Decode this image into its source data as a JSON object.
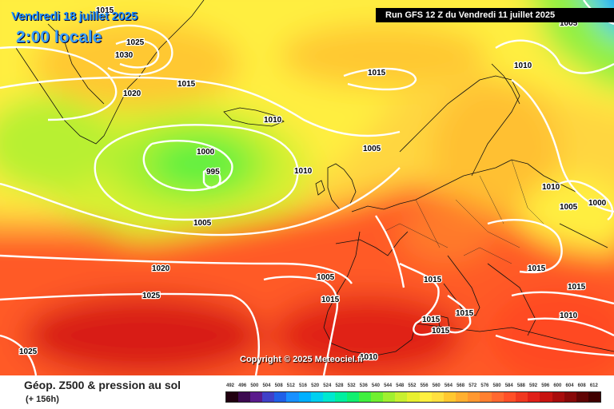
{
  "header": {
    "date": "Vendredi 18 juillet 2025",
    "local_time": "2:00 locale",
    "run": "Run GFS 12 Z du Vendredi 11 juillet 2025"
  },
  "copyright": "Copyright © 2025 Meteociel.fr",
  "footer": {
    "title": "Géop. Z500 & pression au sol",
    "lead": "(+ 156h)"
  },
  "isobar_labels": [
    "1015",
    "1025",
    "1030",
    "1020",
    "1015",
    "1015",
    "1010",
    "1000",
    "995",
    "1005",
    "1010",
    "1005",
    "1010",
    "1010",
    "1005",
    "1000",
    "1015",
    "1015",
    "1020",
    "1015",
    "1025",
    "1015",
    "1015",
    "1015",
    "1010",
    "1015",
    "1025",
    "1010",
    "1005",
    "1005"
  ],
  "scale": {
    "values": [
      "492",
      "496",
      "500",
      "504",
      "508",
      "512",
      "516",
      "520",
      "524",
      "528",
      "532",
      "536",
      "540",
      "544",
      "548",
      "552",
      "556",
      "560",
      "564",
      "568",
      "572",
      "576",
      "580",
      "584",
      "588",
      "592",
      "596",
      "600",
      "604",
      "608",
      "612"
    ],
    "colors": [
      "#200010",
      "#3c0a50",
      "#5a1a8c",
      "#4040c8",
      "#2060e8",
      "#1890ff",
      "#00b0ff",
      "#00d0f0",
      "#00e8d0",
      "#00f0a0",
      "#10f070",
      "#40f040",
      "#70f030",
      "#a0f030",
      "#c8f030",
      "#e8f030",
      "#fff040",
      "#ffe040",
      "#ffc830",
      "#ffb030",
      "#ff9830",
      "#ff8030",
      "#ff6830",
      "#ff5028",
      "#f03820",
      "#e02018",
      "#c81410",
      "#a80c0c",
      "#880808",
      "#600404",
      "#400000"
    ]
  }
}
